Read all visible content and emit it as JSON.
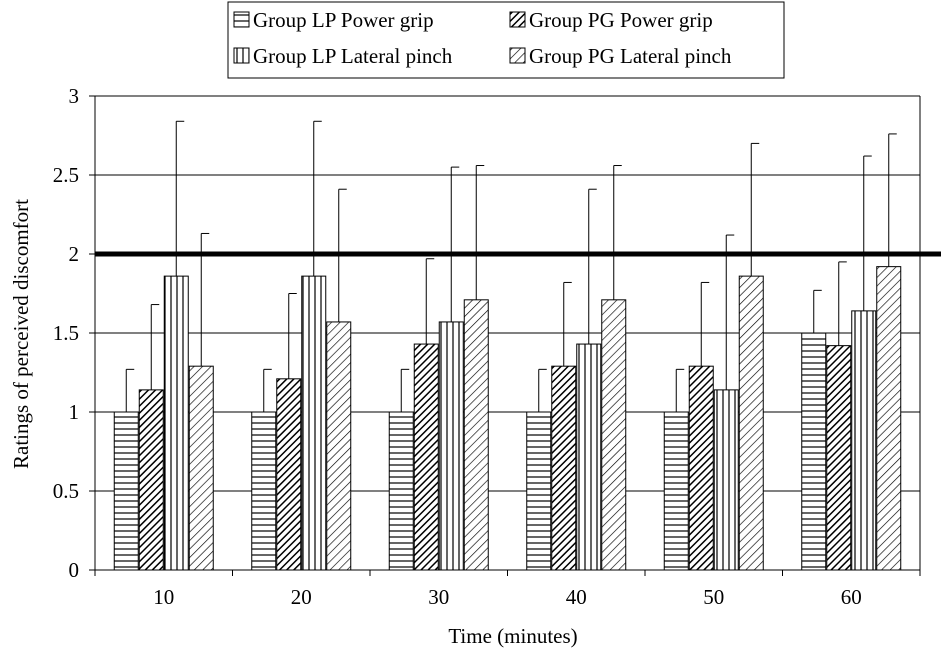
{
  "chart_data": {
    "type": "bar",
    "title": "",
    "xlabel": "Time (minutes)",
    "ylabel": "Ratings of perceived discomfort",
    "categories": [
      "10",
      "20",
      "30",
      "40",
      "50",
      "60"
    ],
    "ylim": [
      0,
      3
    ],
    "yticks": [
      "0",
      "0.5",
      "1",
      "1.5",
      "2",
      "2.5",
      "3"
    ],
    "grid": true,
    "reference_line": 2,
    "legend_position": "top",
    "series": [
      {
        "name": "Group LP Power grip",
        "pattern": "horizontal-lines",
        "values": [
          1.0,
          1.0,
          1.0,
          1.0,
          1.0,
          1.5
        ],
        "error": [
          0.27,
          0.27,
          0.27,
          0.27,
          0.27,
          0.27
        ]
      },
      {
        "name": "Group PG Power grip",
        "pattern": "dense-diagonal",
        "values": [
          1.14,
          1.21,
          1.43,
          1.29,
          1.29,
          1.42
        ],
        "error": [
          0.54,
          0.54,
          0.54,
          0.53,
          0.53,
          0.53
        ]
      },
      {
        "name": "Group LP Lateral pinch",
        "pattern": "vertical-lines",
        "values": [
          1.86,
          1.86,
          1.57,
          1.43,
          1.14,
          1.64
        ],
        "error": [
          0.98,
          0.98,
          0.98,
          0.98,
          0.98,
          0.98
        ]
      },
      {
        "name": "Group PG Lateral pinch",
        "pattern": "sparse-diagonal",
        "values": [
          1.29,
          1.57,
          1.71,
          1.71,
          1.86,
          1.92
        ],
        "error": [
          0.84,
          0.84,
          0.85,
          0.85,
          0.84,
          0.84
        ]
      }
    ]
  }
}
